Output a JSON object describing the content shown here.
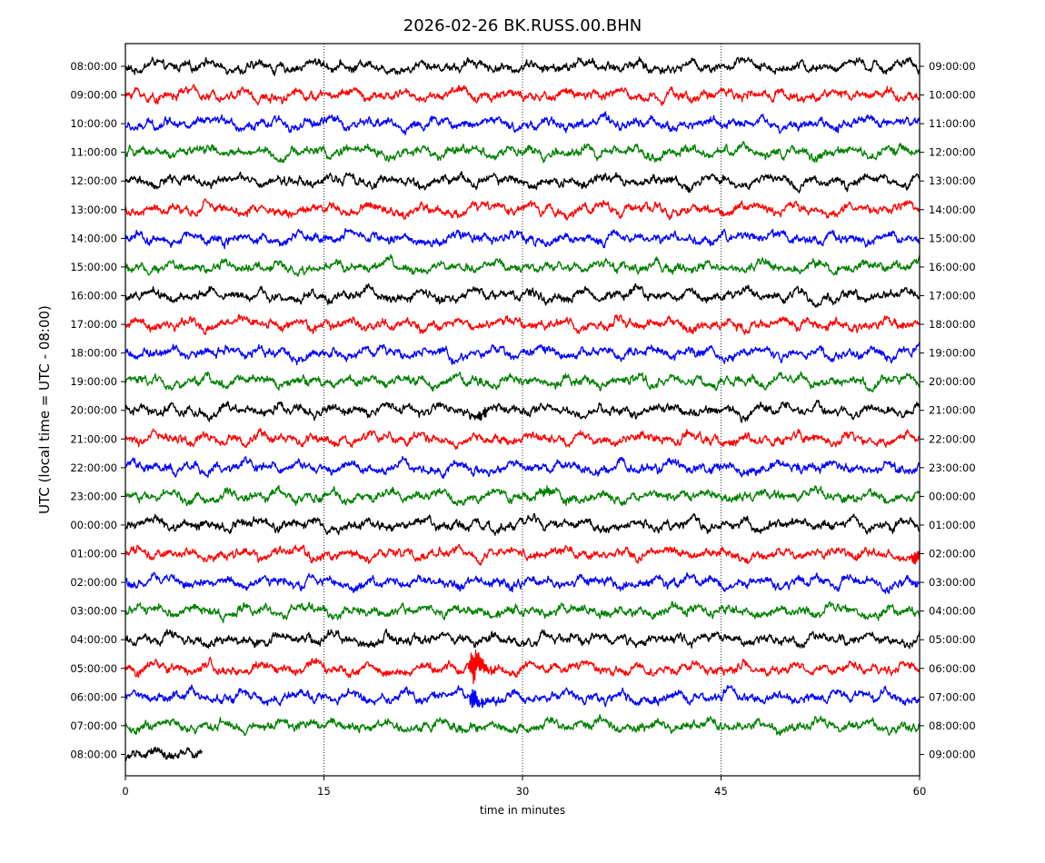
{
  "chart_data": {
    "type": "line",
    "title": "2026-02-26 BK.RUSS.00.BHN",
    "xlabel": "time in minutes",
    "ylabel": "UTC (local time = UTC - 08:00)",
    "xlim": [
      0,
      60
    ],
    "x_ticks": [
      0,
      15,
      30,
      45,
      60
    ],
    "x_tick_labels": [
      "0",
      "15",
      "30",
      "45",
      "60"
    ],
    "grid": "vertical dotted lines at 15, 30, 45",
    "series_colors": [
      "#000000",
      "#ff0000",
      "#0000ff",
      "#008000"
    ],
    "left_labels": [
      "08:00:00",
      "09:00:00",
      "10:00:00",
      "11:00:00",
      "12:00:00",
      "13:00:00",
      "14:00:00",
      "15:00:00",
      "16:00:00",
      "17:00:00",
      "18:00:00",
      "19:00:00",
      "20:00:00",
      "21:00:00",
      "22:00:00",
      "23:00:00",
      "00:00:00",
      "01:00:00",
      "02:00:00",
      "03:00:00",
      "04:00:00",
      "05:00:00",
      "06:00:00",
      "07:00:00",
      "08:00:00"
    ],
    "right_labels": [
      "09:00:00",
      "10:00:00",
      "11:00:00",
      "12:00:00",
      "13:00:00",
      "14:00:00",
      "15:00:00",
      "16:00:00",
      "17:00:00",
      "18:00:00",
      "19:00:00",
      "20:00:00",
      "21:00:00",
      "22:00:00",
      "23:00:00",
      "00:00:00",
      "01:00:00",
      "02:00:00",
      "03:00:00",
      "04:00:00",
      "05:00:00",
      "06:00:00",
      "07:00:00",
      "08:00:00",
      "09:00:00"
    ],
    "last_trace_end_minute": 5.8,
    "events": [
      {
        "trace_index": 21,
        "minute": 26.2,
        "amplitude": 1.8
      },
      {
        "trace_index": 22,
        "minute": 26.2,
        "amplitude": 0.9
      },
      {
        "trace_index": 17,
        "minute": 59.6,
        "amplitude": 0.9
      },
      {
        "trace_index": 12,
        "minute": 26.8,
        "amplitude": 0.5
      },
      {
        "trace_index": 15,
        "minute": 31.5,
        "amplitude": 0.4
      }
    ]
  }
}
